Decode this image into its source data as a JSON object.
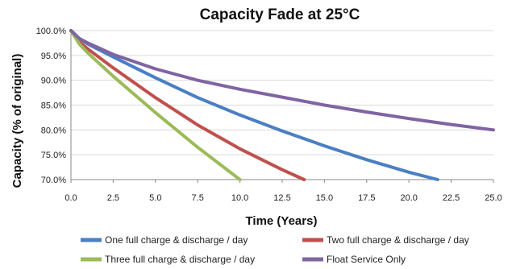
{
  "chart_data": {
    "type": "line",
    "title": "Capacity Fade at 25°C",
    "xlabel": "Time (Years)",
    "ylabel": "Capacity (% of original)",
    "xlim": [
      0,
      25
    ],
    "ylim": [
      70,
      100
    ],
    "x_ticks": [
      "0.0",
      "2.5",
      "5.0",
      "7.5",
      "10.0",
      "12.5",
      "15.0",
      "17.5",
      "20.0",
      "22.5",
      "25.0"
    ],
    "y_ticks": [
      "70.0%",
      "75.0%",
      "80.0%",
      "85.0%",
      "90.0%",
      "95.0%",
      "100.0%"
    ],
    "grid": "horizontal",
    "legend_position": "bottom",
    "series": [
      {
        "name": "One full charge & discharge / day",
        "color": "#4a7fc4",
        "x": [
          0,
          0.5,
          1,
          2.5,
          5,
          7.5,
          10,
          12.5,
          15,
          17.5,
          20,
          21.7
        ],
        "y": [
          100,
          98.4,
          97.3,
          94.7,
          90.5,
          86.5,
          83.0,
          79.8,
          76.8,
          74.0,
          71.5,
          70.0
        ]
      },
      {
        "name": "Two full charge & discharge / day",
        "color": "#c0504d",
        "x": [
          0,
          0.5,
          1,
          2.5,
          5,
          7.5,
          10,
          12.5,
          13.8
        ],
        "y": [
          100,
          97.7,
          96.3,
          92.5,
          86.5,
          81.0,
          76.2,
          72.0,
          70.0
        ]
      },
      {
        "name": "Three full charge & discharge / day",
        "color": "#9bbb59",
        "x": [
          0,
          0.5,
          1,
          2.5,
          5,
          7.5,
          10
        ],
        "y": [
          100,
          97.3,
          95.5,
          90.8,
          83.5,
          76.5,
          70.0
        ]
      },
      {
        "name": "Float Service Only",
        "color": "#8064a2",
        "x": [
          0,
          0.5,
          1,
          2.5,
          5,
          7.5,
          10,
          12.5,
          15,
          17.5,
          20,
          22.5,
          25
        ],
        "y": [
          100,
          98.4,
          97.5,
          95.2,
          92.3,
          90.0,
          88.2,
          86.6,
          85.0,
          83.6,
          82.3,
          81.1,
          80.0
        ]
      }
    ]
  }
}
